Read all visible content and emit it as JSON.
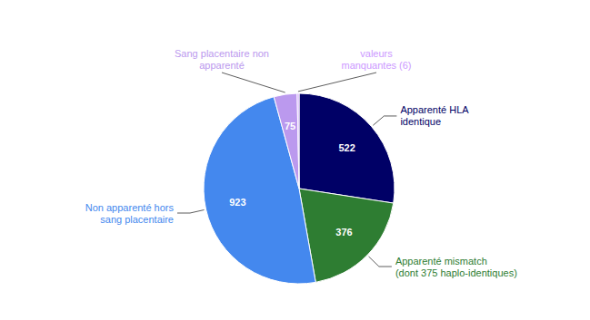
{
  "chart_data": {
    "type": "pie",
    "categories": [
      "Apparenté HLA\nidentique",
      "Apparenté mismatch\n(dont 375 haplo-identiques)",
      "Non apparenté hors\nsang placentaire",
      "Sang placentaire non\napparenté",
      "valeurs\nmanquantes (6)"
    ],
    "values": [
      522,
      376,
      923,
      75,
      6
    ],
    "value_labels": [
      "522",
      "376",
      "923",
      "75",
      null
    ],
    "colors": [
      "#000066",
      "#2e7d32",
      "#4488ee",
      "#bb99ee",
      "#cc99ff"
    ],
    "data_labels": true
  }
}
